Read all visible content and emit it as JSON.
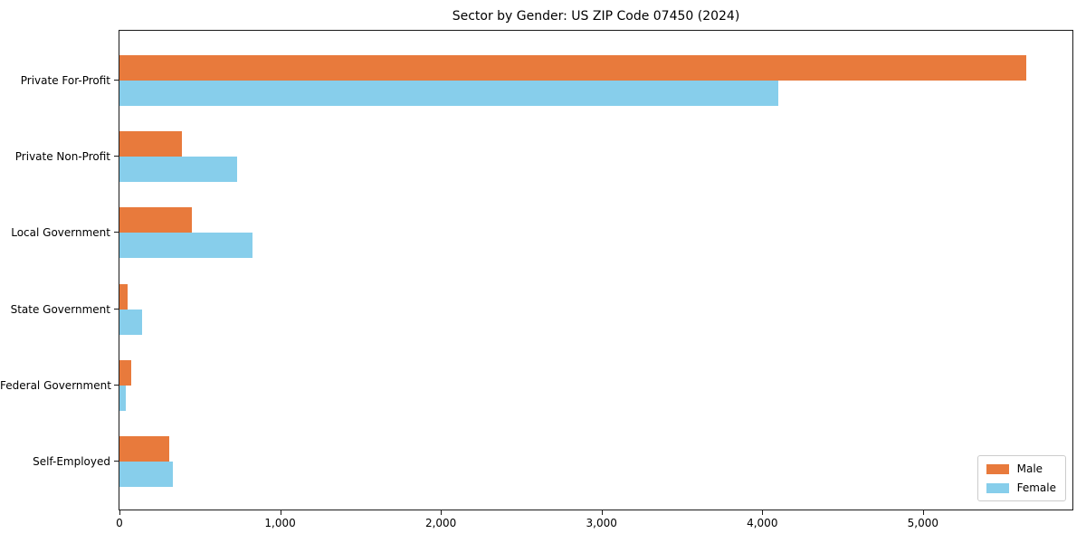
{
  "chart_data": {
    "type": "bar",
    "orientation": "horizontal",
    "title": "Sector by Gender: US ZIP Code 07450 (2024)",
    "categories": [
      "Private For-Profit",
      "Private Non-Profit",
      "Local Government",
      "State Government",
      "Federal Government",
      "Self-Employed"
    ],
    "series": [
      {
        "name": "Male",
        "color": "#e87a3c",
        "values": [
          5640,
          390,
          450,
          50,
          75,
          310
        ]
      },
      {
        "name": "Female",
        "color": "#87ceeb",
        "values": [
          4100,
          730,
          825,
          140,
          40,
          330
        ]
      }
    ],
    "xlabel": "",
    "ylabel": "",
    "xlim": [
      0,
      5930
    ],
    "x_tick_values": [
      0,
      1000,
      2000,
      3000,
      4000,
      5000
    ],
    "x_tick_labels": [
      "0",
      "1,000",
      "2,000",
      "3,000",
      "4,000",
      "5,000"
    ],
    "grid": false,
    "legend_position": "lower right",
    "colors": {
      "spine": "#1a1a1a",
      "legend_border": "#cccccc",
      "background": "#ffffff"
    }
  }
}
